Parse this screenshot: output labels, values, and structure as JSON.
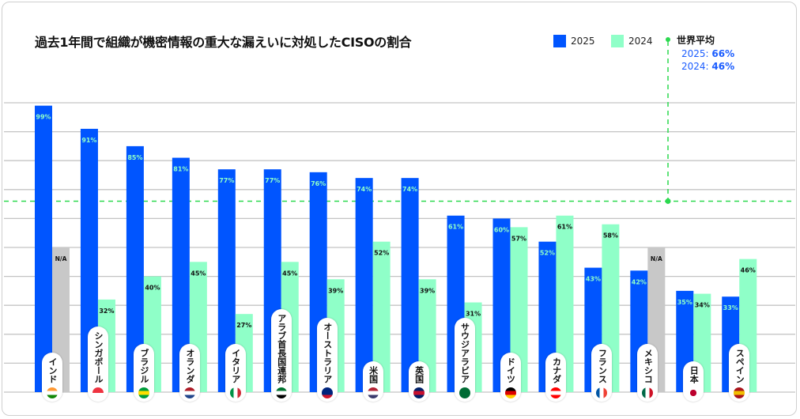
{
  "chart_data": {
    "type": "bar",
    "title": "過去1年間で組織が機密情報の重大な漏えいに対処したCISOの割合",
    "categories": [
      "インド",
      "シンガポール",
      "ブラジル",
      "オランダ",
      "イタリア",
      "アラブ首長国連邦",
      "オーストラリア",
      "米国",
      "英国",
      "サウジアラビア",
      "ドイツ",
      "カナダ",
      "フランス",
      "メキシコ",
      "日本",
      "スペイン"
    ],
    "series": [
      {
        "name": "2025",
        "color": "#0055ff",
        "values": [
          99,
          91,
          85,
          81,
          77,
          77,
          76,
          74,
          74,
          61,
          60,
          52,
          43,
          42,
          35,
          33
        ],
        "labels": [
          "99%",
          "91%",
          "85%",
          "81%",
          "77%",
          "77%",
          "76%",
          "74%",
          "74%",
          "61%",
          "60%",
          "52%",
          "43%",
          "42%",
          "35%",
          "33%"
        ]
      },
      {
        "name": "2024",
        "color": "#8fffc8",
        "values": [
          null,
          32,
          40,
          45,
          27,
          45,
          39,
          52,
          39,
          31,
          57,
          61,
          58,
          null,
          34,
          46
        ],
        "labels": [
          "N/A",
          "32%",
          "40%",
          "45%",
          "27%",
          "45%",
          "39%",
          "52%",
          "39%",
          "31%",
          "57%",
          "61%",
          "58%",
          "N/A",
          "34%",
          "46%"
        ]
      }
    ],
    "na_color": "#c8c8c8",
    "ylim": [
      0,
      100
    ],
    "grid": true,
    "legend_position": "top-right",
    "world_average": {
      "label": "世界平均",
      "line_color": "#2bd94f",
      "rows": [
        {
          "year": "2025: ",
          "value": "66%"
        },
        {
          "year": "2024: ",
          "value": "46%"
        }
      ],
      "reference_value": 66
    },
    "flags": [
      [
        "#ff9933",
        "#ffffff",
        "#138808"
      ],
      [
        "#ef3340",
        "#ffffff"
      ],
      [
        "#009c3b",
        "#ffdf00",
        "#009c3b"
      ],
      [
        "#ae1c28",
        "#ffffff",
        "#21468b"
      ],
      [
        "#009246",
        "#ffffff",
        "#ce2b37"
      ],
      [
        "#00732f",
        "#ffffff",
        "#000000"
      ],
      [
        "#00247d",
        "#00247d",
        "#cf142b"
      ],
      [
        "#b22234",
        "#ffffff",
        "#3c3b6e"
      ],
      [
        "#012169",
        "#c8102e",
        "#012169"
      ],
      [
        "#006c35",
        "#006c35"
      ],
      [
        "#000000",
        "#dd0000",
        "#ffce00"
      ],
      [
        "#ff0000",
        "#ffffff",
        "#ff0000"
      ],
      [
        "#0055a4",
        "#ffffff",
        "#ef4135"
      ],
      [
        "#006847",
        "#ffffff",
        "#ce1126"
      ],
      [
        "#ffffff",
        "#bc002d",
        "#ffffff"
      ],
      [
        "#aa151b",
        "#f1bf00",
        "#aa151b"
      ]
    ]
  }
}
